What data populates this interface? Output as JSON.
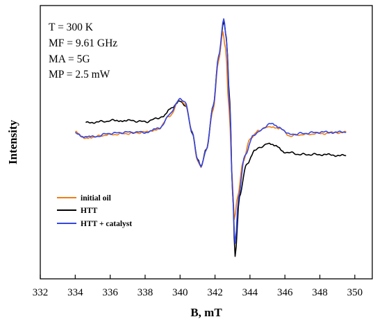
{
  "chart_data": {
    "type": "line",
    "title": "",
    "xlabel": "B, mT",
    "ylabel": "Intensity",
    "xlim": [
      332,
      351
    ],
    "ylim": [
      -1.25,
      1.08
    ],
    "x_ticks": [
      "332",
      "334",
      "336",
      "338",
      "340",
      "342",
      "344",
      "346",
      "348",
      "350"
    ],
    "y_ticks_shown": false,
    "grid": false,
    "legend_position": "bottom-left",
    "annotations": [
      "T = 300 K",
      "MF = 9.61 GHz",
      "MA = 5G",
      "MP = 2.5 mW"
    ],
    "series": [
      {
        "name": "initial oil",
        "color": "#f07d14",
        "points": [
          [
            334.0,
            0.0
          ],
          [
            334.5,
            -0.05
          ],
          [
            335.0,
            -0.04
          ],
          [
            336.0,
            -0.02
          ],
          [
            337.0,
            -0.01
          ],
          [
            338.0,
            0.0
          ],
          [
            338.8,
            0.03
          ],
          [
            339.4,
            0.14
          ],
          [
            340.0,
            0.28
          ],
          [
            340.3,
            0.24
          ],
          [
            340.7,
            0.0
          ],
          [
            341.0,
            -0.24
          ],
          [
            341.2,
            -0.29
          ],
          [
            341.5,
            -0.15
          ],
          [
            341.9,
            0.2
          ],
          [
            342.2,
            0.6
          ],
          [
            342.45,
            0.85
          ],
          [
            342.6,
            0.72
          ],
          [
            342.8,
            0.2
          ],
          [
            343.0,
            -0.42
          ],
          [
            343.1,
            -0.75
          ],
          [
            343.3,
            -0.55
          ],
          [
            343.6,
            -0.25
          ],
          [
            344.0,
            -0.06
          ],
          [
            344.5,
            0.02
          ],
          [
            345.2,
            0.05
          ],
          [
            345.7,
            0.03
          ],
          [
            346.3,
            -0.03
          ],
          [
            347.0,
            -0.02
          ],
          [
            348.0,
            -0.01
          ],
          [
            349.5,
            0.0
          ]
        ]
      },
      {
        "name": "HTT",
        "color": "#000000",
        "points": [
          [
            334.6,
            0.08
          ],
          [
            335.5,
            0.09
          ],
          [
            336.2,
            0.1
          ],
          [
            337.0,
            0.1
          ],
          [
            338.0,
            0.09
          ],
          [
            339.0,
            0.13
          ],
          [
            339.5,
            0.2
          ],
          [
            340.0,
            0.27
          ],
          [
            340.3,
            0.23
          ],
          [
            340.7,
            0.0
          ],
          [
            341.0,
            -0.23
          ],
          [
            341.2,
            -0.29
          ],
          [
            341.5,
            -0.15
          ],
          [
            341.9,
            0.22
          ],
          [
            342.2,
            0.62
          ],
          [
            342.5,
            0.95
          ],
          [
            342.65,
            0.8
          ],
          [
            342.85,
            0.25
          ],
          [
            343.0,
            -0.5
          ],
          [
            343.15,
            -1.05
          ],
          [
            343.4,
            -0.55
          ],
          [
            343.8,
            -0.27
          ],
          [
            344.3,
            -0.15
          ],
          [
            345.0,
            -0.1
          ],
          [
            345.5,
            -0.12
          ],
          [
            346.0,
            -0.17
          ],
          [
            347.0,
            -0.19
          ],
          [
            348.0,
            -0.19
          ],
          [
            349.5,
            -0.2
          ]
        ]
      },
      {
        "name": "HTT + catalyst",
        "color": "#3246e6",
        "points": [
          [
            334.0,
            0.0
          ],
          [
            334.5,
            -0.04
          ],
          [
            335.0,
            -0.04
          ],
          [
            336.0,
            -0.01
          ],
          [
            337.0,
            0.0
          ],
          [
            338.0,
            0.0
          ],
          [
            338.8,
            0.03
          ],
          [
            339.4,
            0.15
          ],
          [
            340.0,
            0.29
          ],
          [
            340.3,
            0.25
          ],
          [
            340.7,
            0.0
          ],
          [
            341.0,
            -0.24
          ],
          [
            341.2,
            -0.3
          ],
          [
            341.5,
            -0.15
          ],
          [
            341.9,
            0.22
          ],
          [
            342.2,
            0.65
          ],
          [
            342.5,
            0.96
          ],
          [
            342.65,
            0.8
          ],
          [
            342.85,
            0.2
          ],
          [
            343.0,
            -0.5
          ],
          [
            343.15,
            -0.95
          ],
          [
            343.35,
            -0.55
          ],
          [
            343.7,
            -0.2
          ],
          [
            344.2,
            -0.02
          ],
          [
            345.2,
            0.07
          ],
          [
            345.7,
            0.04
          ],
          [
            346.3,
            -0.02
          ],
          [
            347.0,
            -0.01
          ],
          [
            348.0,
            0.0
          ],
          [
            349.5,
            0.0
          ]
        ]
      }
    ]
  }
}
